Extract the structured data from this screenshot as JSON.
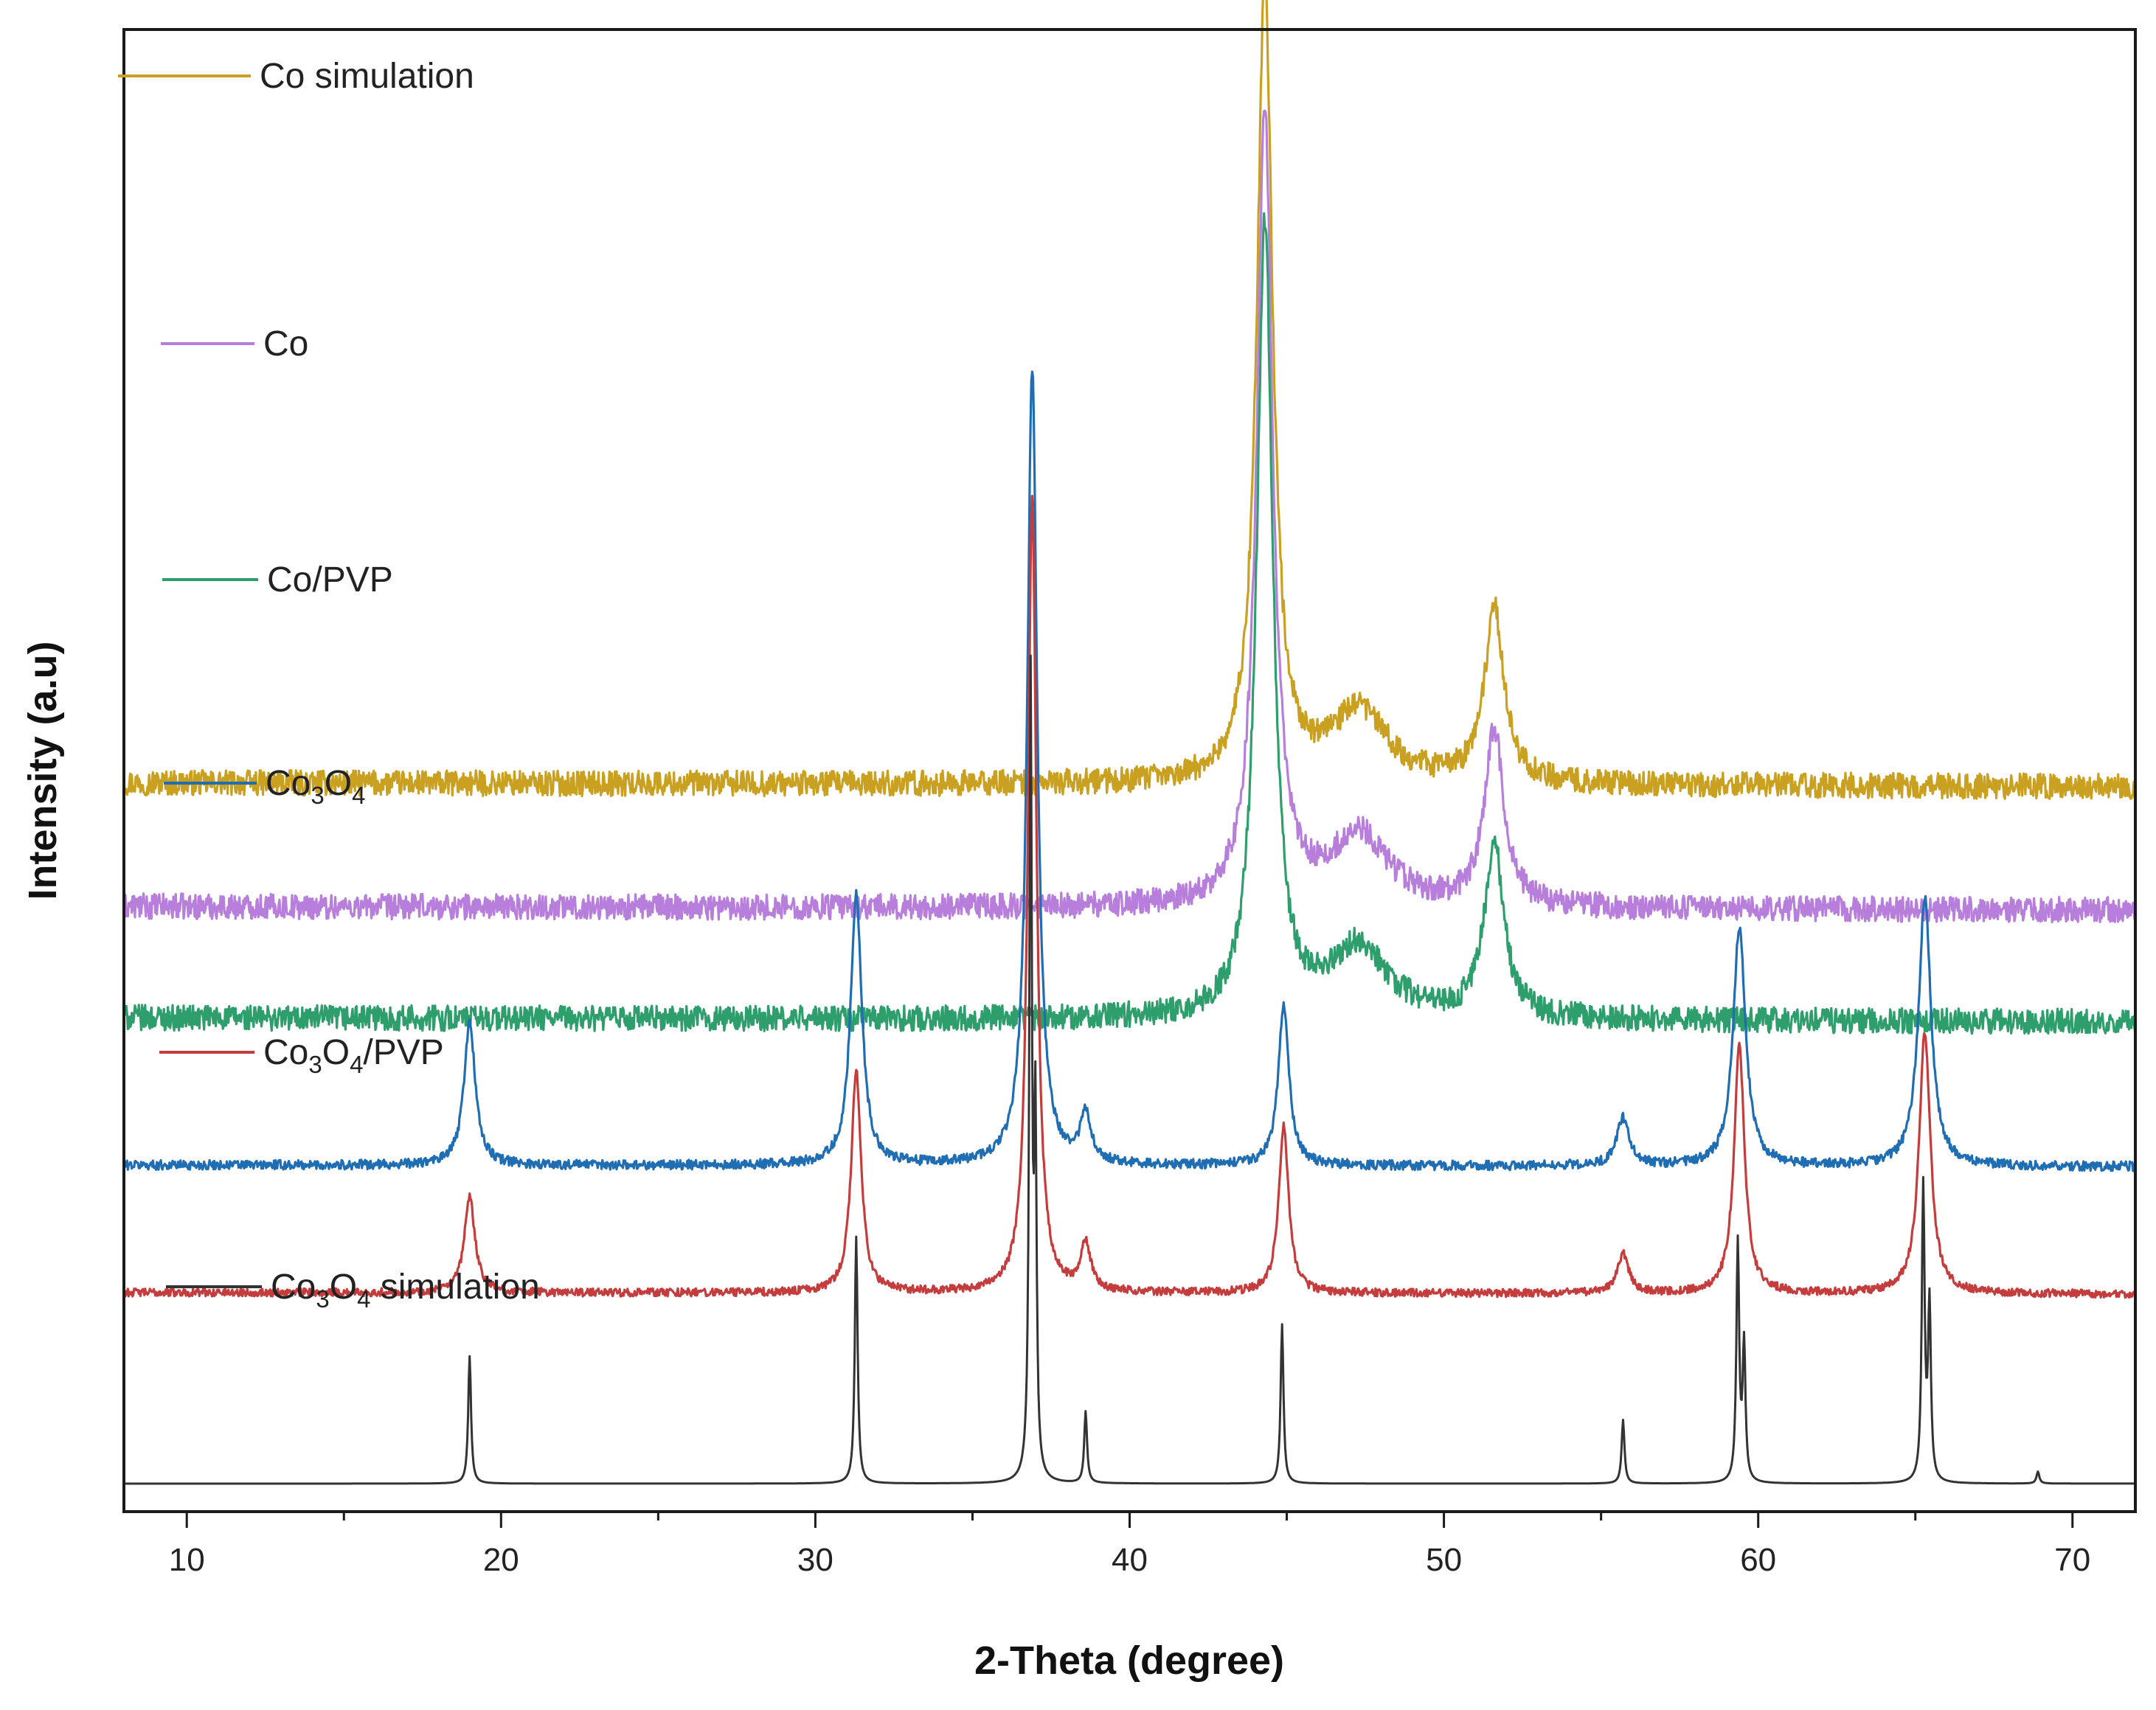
{
  "chart_data": {
    "type": "line",
    "title": "",
    "xlabel": "2-Theta (degree)",
    "ylabel": "Intensity (a.u)",
    "xlim": [
      8,
      72
    ],
    "y_ticks_shown": false,
    "x_ticks": [
      10,
      20,
      30,
      40,
      50,
      60,
      70
    ],
    "grid": false,
    "legend_placement": "inline-left, one per trace",
    "note_units": "y values are relative intensity (a.u.), 0-100 per trace; traces are vertically offset",
    "series": [
      {
        "name": "Co simulation",
        "legend_text": "Co simulation",
        "legend_sub": [],
        "color": "#c9a020",
        "offset": 88,
        "noise": 1.6,
        "drift": -0.5,
        "peaks": [
          {
            "x": 44.3,
            "y": 100,
            "w": 0.45
          },
          {
            "x": 47.3,
            "y": 9,
            "w": 1.6
          },
          {
            "x": 51.6,
            "y": 22,
            "w": 0.55
          }
        ]
      },
      {
        "name": "Co",
        "legend_text": "Co",
        "legend_sub": [],
        "color": "#b77fdb",
        "offset": 72.5,
        "noise": 1.6,
        "drift": -0.5,
        "peaks": [
          {
            "x": 44.3,
            "y": 100,
            "w": 0.45
          },
          {
            "x": 47.3,
            "y": 9,
            "w": 1.6
          },
          {
            "x": 51.6,
            "y": 22,
            "w": 0.55
          }
        ]
      },
      {
        "name": "Co/PVP",
        "legend_text": "Co/PVP",
        "legend_sub": [],
        "color": "#2e9e6c",
        "offset": 58.5,
        "noise": 1.6,
        "drift": -0.5,
        "peaks": [
          {
            "x": 44.3,
            "y": 100,
            "w": 0.45
          },
          {
            "x": 47.3,
            "y": 9,
            "w": 1.6
          },
          {
            "x": 51.6,
            "y": 22,
            "w": 0.55
          }
        ]
      },
      {
        "name": "Co3O4",
        "legend_text": "Co3O4",
        "legend_sub": [
          "Co",
          "3",
          "O",
          "4",
          ""
        ],
        "color": "#1f6db3",
        "offset": 40,
        "noise": 0.6,
        "drift": -0.2,
        "peaks": [
          {
            "x": 19.0,
            "y": 18,
            "w": 0.32
          },
          {
            "x": 31.3,
            "y": 34,
            "w": 0.32
          },
          {
            "x": 36.9,
            "y": 100,
            "w": 0.28
          },
          {
            "x": 38.6,
            "y": 6,
            "w": 0.3
          },
          {
            "x": 44.9,
            "y": 20,
            "w": 0.3
          },
          {
            "x": 55.7,
            "y": 6,
            "w": 0.35
          },
          {
            "x": 59.4,
            "y": 30,
            "w": 0.35
          },
          {
            "x": 65.3,
            "y": 34,
            "w": 0.35
          }
        ]
      },
      {
        "name": "Co3O4/PVP",
        "legend_text": "Co3O4/PVP",
        "legend_sub": [
          "Co",
          "3",
          "O",
          "4",
          "/PVP"
        ],
        "color": "#c43c3c",
        "offset": 24,
        "noise": 0.5,
        "drift": -0.2,
        "peaks": [
          {
            "x": 19.0,
            "y": 12,
            "w": 0.3
          },
          {
            "x": 31.3,
            "y": 28,
            "w": 0.28
          },
          {
            "x": 36.9,
            "y": 100,
            "w": 0.24
          },
          {
            "x": 38.6,
            "y": 6,
            "w": 0.28
          },
          {
            "x": 44.9,
            "y": 21,
            "w": 0.28
          },
          {
            "x": 55.7,
            "y": 5,
            "w": 0.32
          },
          {
            "x": 59.4,
            "y": 31,
            "w": 0.3
          },
          {
            "x": 65.3,
            "y": 33,
            "w": 0.32
          }
        ]
      },
      {
        "name": "Co3O4 simulation",
        "legend_text": "Co3O4 simulation",
        "legend_sub": [
          "Co",
          "3",
          "O",
          "4",
          " simulation"
        ],
        "color": "#333333",
        "offset": 0,
        "noise": 0,
        "drift": 0,
        "peaks": [
          {
            "x": 19.0,
            "y": 16,
            "w": 0.08
          },
          {
            "x": 31.3,
            "y": 31,
            "w": 0.08
          },
          {
            "x": 36.85,
            "y": 100,
            "w": 0.07
          },
          {
            "x": 37.0,
            "y": 44,
            "w": 0.07
          },
          {
            "x": 38.6,
            "y": 9,
            "w": 0.08
          },
          {
            "x": 44.85,
            "y": 20,
            "w": 0.08
          },
          {
            "x": 55.7,
            "y": 8,
            "w": 0.08
          },
          {
            "x": 59.35,
            "y": 30,
            "w": 0.08
          },
          {
            "x": 59.55,
            "y": 17,
            "w": 0.08
          },
          {
            "x": 65.25,
            "y": 37,
            "w": 0.08
          },
          {
            "x": 65.45,
            "y": 22,
            "w": 0.08
          },
          {
            "x": 68.9,
            "y": 1.5,
            "w": 0.08
          }
        ]
      }
    ]
  }
}
